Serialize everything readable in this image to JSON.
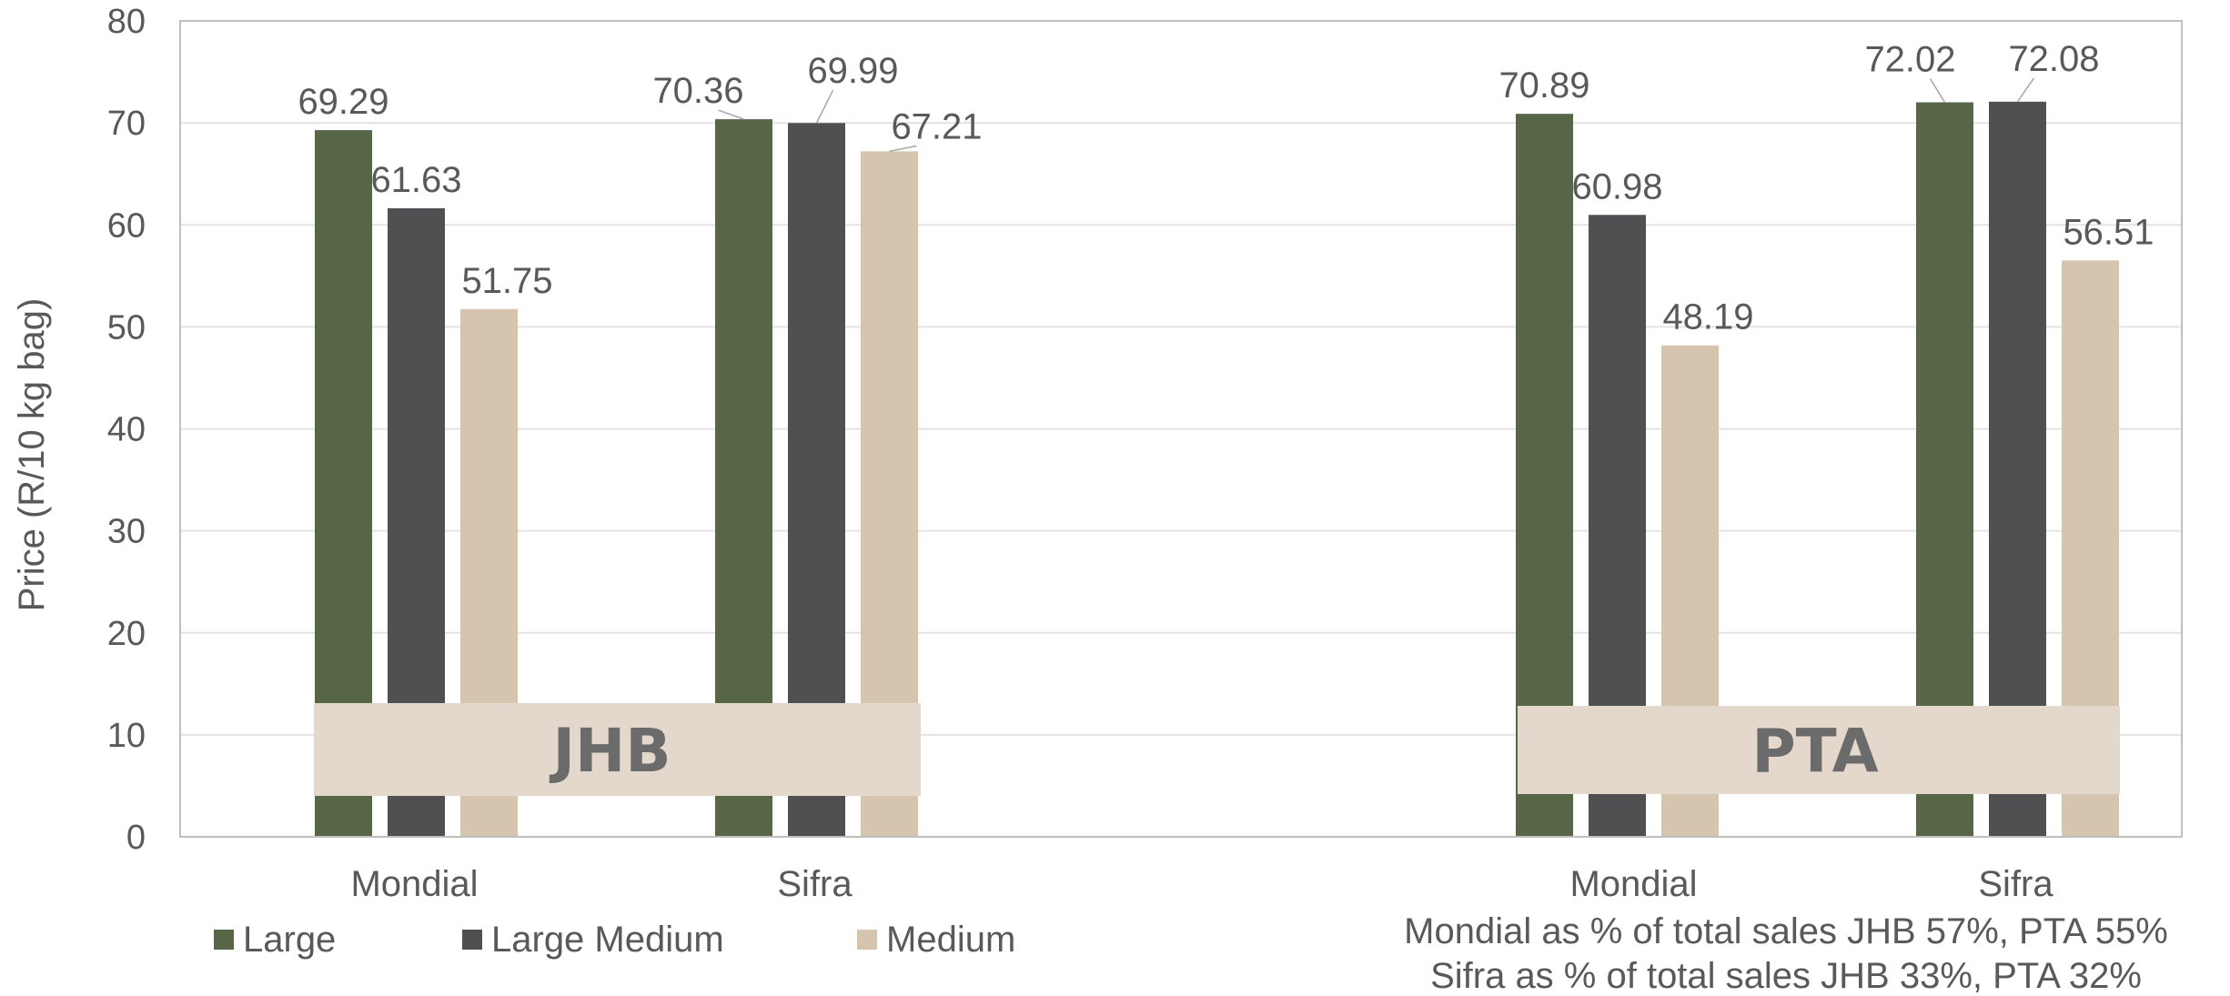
{
  "chart_data": {
    "type": "bar",
    "title": "",
    "xlabel": "",
    "ylabel": "Price (R/10 kg bag)",
    "ylim": [
      0,
      80
    ],
    "yticks": [
      "0",
      "10",
      "20",
      "30",
      "40",
      "50",
      "60",
      "70",
      "80"
    ],
    "grid": true,
    "legend_position": "bottom-left",
    "groups": [
      {
        "label": "JHB",
        "categories": [
          "Mondial",
          "Sifra"
        ]
      },
      {
        "label": "PTA",
        "categories": [
          "Mondial",
          "Sifra"
        ]
      }
    ],
    "series": [
      {
        "name": "Large",
        "color": "#566647",
        "values": [
          69.29,
          70.36,
          70.89,
          72.02
        ],
        "labels": [
          "69.29",
          "70.36",
          "70.89",
          "72.02"
        ]
      },
      {
        "name": "Large Medium",
        "color": "#505052",
        "values": [
          61.63,
          69.99,
          60.98,
          72.08
        ],
        "labels": [
          "61.63",
          "69.99",
          "60.98",
          "72.08"
        ]
      },
      {
        "name": "Medium",
        "color": "#d5c4ae",
        "values": [
          51.75,
          67.21,
          48.19,
          56.51
        ],
        "labels": [
          "51.75",
          "67.21",
          "48.19",
          "56.51"
        ]
      }
    ],
    "notes": [
      "Mondial as % of total sales JHB 57%, PTA 55%",
      "Sifra as % of total sales JHB 33%, PTA 32%"
    ]
  }
}
